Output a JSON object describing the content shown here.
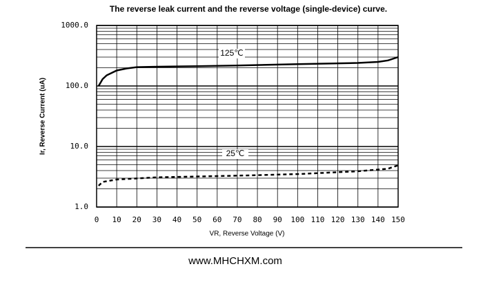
{
  "chart_data": {
    "type": "line",
    "title": "The reverse leak current and the reverse voltage (single-device) curve.",
    "x_label": "VR, Reverse Voltage (V)",
    "y_label": "Ir, Reverse Current (uA)",
    "log_y": true,
    "grid": true,
    "xlim": [
      0,
      150
    ],
    "xticks": [
      0,
      10,
      20,
      30,
      40,
      50,
      60,
      70,
      80,
      90,
      100,
      110,
      120,
      130,
      140,
      150
    ],
    "ylim": [
      1,
      1000
    ],
    "yticks": [
      {
        "value": 1,
        "label": "1.0"
      },
      {
        "value": 10,
        "label": "10.0"
      },
      {
        "value": 100,
        "label": "100.0"
      },
      {
        "value": 1000,
        "label": "1000.0"
      }
    ],
    "yminorticks": [
      2,
      3,
      4,
      5,
      6,
      7,
      8,
      9,
      20,
      30,
      40,
      50,
      60,
      70,
      80,
      90,
      200,
      300,
      400,
      500,
      600,
      700,
      800,
      900
    ],
    "series": [
      {
        "name": "125℃",
        "color": "#000000",
        "dashed": false,
        "x": [
          1,
          3,
          5,
          10,
          15,
          20,
          30,
          50,
          70,
          100,
          130,
          140,
          145,
          150
        ],
        "values": [
          100,
          130,
          150,
          180,
          195,
          205,
          208,
          212,
          218,
          230,
          240,
          250,
          265,
          300
        ]
      },
      {
        "name": "25℃",
        "color": "#000000",
        "dashed": true,
        "x": [
          1,
          3,
          10,
          30,
          70,
          100,
          130,
          145,
          150
        ],
        "values": [
          2.25,
          2.6,
          2.85,
          3.1,
          3.3,
          3.5,
          3.9,
          4.3,
          4.9
        ]
      }
    ]
  },
  "footer": "www.MHCHXM.com"
}
